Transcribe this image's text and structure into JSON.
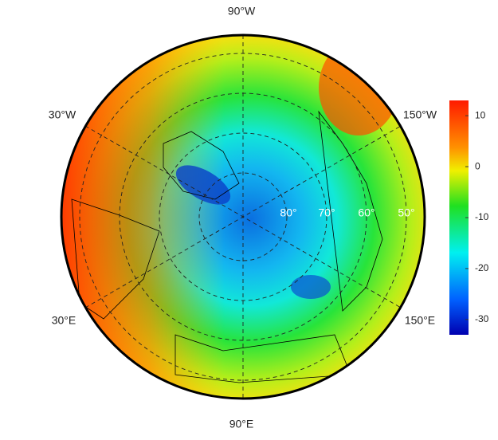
{
  "map": {
    "longitude_labels": [
      "90°W",
      "30°W",
      "150°W",
      "30°E",
      "150°E",
      "90°E"
    ],
    "latitude_labels": [
      "80°",
      "70°",
      "60°",
      "50°"
    ]
  },
  "colorbar": {
    "lim": [
      -33,
      13
    ],
    "ticks": [
      10,
      0,
      -10,
      -20,
      -30
    ]
  }
}
